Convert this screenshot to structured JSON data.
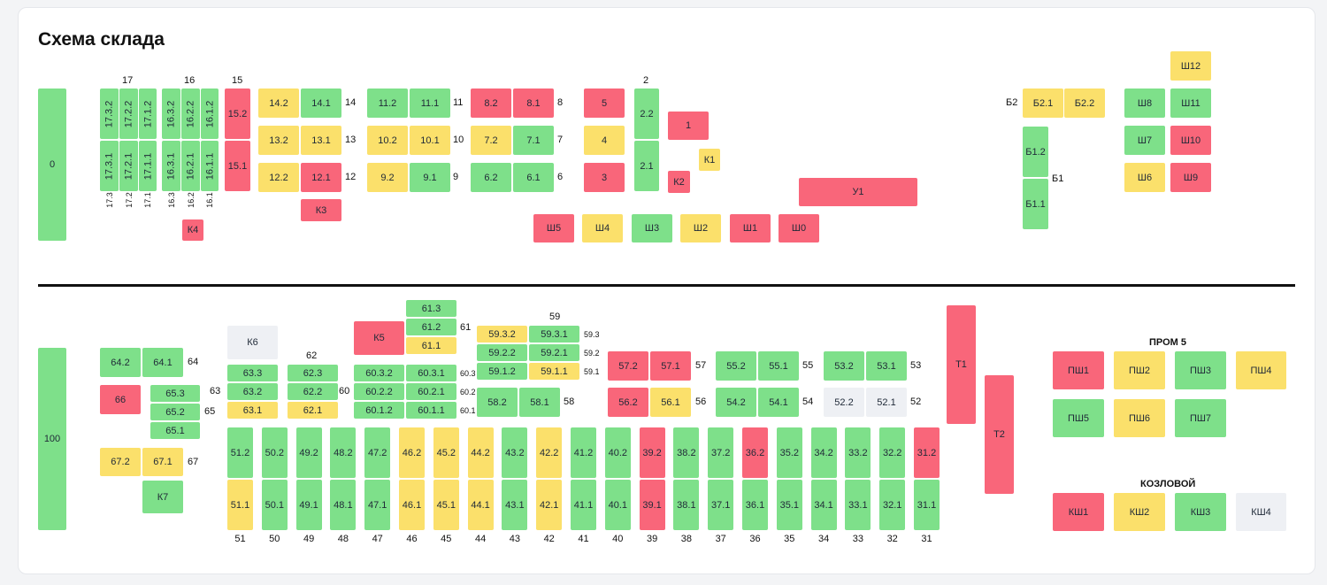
{
  "title": "Схема склада",
  "colors": {
    "green": "#7ee08a",
    "yellow": "#fbe06b",
    "red": "#f9667a",
    "gray": "#eef0f4"
  },
  "cells": {
    "c0": {
      "label": "0",
      "status": "green"
    },
    "c17_3_2": {
      "label": "17.3.2",
      "status": "green"
    },
    "c17_2_2": {
      "label": "17.2.2",
      "status": "green"
    },
    "c17_1_2": {
      "label": "17.1.2",
      "status": "green"
    },
    "c17_3_1": {
      "label": "17.3.1",
      "status": "green"
    },
    "c17_2_1": {
      "label": "17.2.1",
      "status": "green"
    },
    "c17_1_1": {
      "label": "17.1.1",
      "status": "green"
    },
    "c16_3_2": {
      "label": "16.3.2",
      "status": "green"
    },
    "c16_2_2": {
      "label": "16.2.2",
      "status": "green"
    },
    "c16_1_2": {
      "label": "16.1.2",
      "status": "green"
    },
    "c16_3_1": {
      "label": "16.3.1",
      "status": "green"
    },
    "c16_2_1": {
      "label": "16.2.1",
      "status": "green"
    },
    "c16_1_1": {
      "label": "16.1.1",
      "status": "green"
    },
    "cK4": {
      "label": "К4",
      "status": "red"
    },
    "c15_2": {
      "label": "15.2",
      "status": "red"
    },
    "c15_1": {
      "label": "15.1",
      "status": "red"
    },
    "c14_2": {
      "label": "14.2",
      "status": "yellow"
    },
    "c14_1": {
      "label": "14.1",
      "status": "green"
    },
    "c13_2": {
      "label": "13.2",
      "status": "yellow"
    },
    "c13_1": {
      "label": "13.1",
      "status": "yellow"
    },
    "c12_2": {
      "label": "12.2",
      "status": "yellow"
    },
    "c12_1": {
      "label": "12.1",
      "status": "red"
    },
    "cK3": {
      "label": "К3",
      "status": "red"
    },
    "c11_2": {
      "label": "11.2",
      "status": "green"
    },
    "c11_1": {
      "label": "11.1",
      "status": "green"
    },
    "c10_2": {
      "label": "10.2",
      "status": "yellow"
    },
    "c10_1": {
      "label": "10.1",
      "status": "yellow"
    },
    "c9_2": {
      "label": "9.2",
      "status": "yellow"
    },
    "c9_1": {
      "label": "9.1",
      "status": "green"
    },
    "c8_2": {
      "label": "8.2",
      "status": "red"
    },
    "c8_1": {
      "label": "8.1",
      "status": "red"
    },
    "c7_2": {
      "label": "7.2",
      "status": "yellow"
    },
    "c7_1": {
      "label": "7.1",
      "status": "green"
    },
    "c6_2": {
      "label": "6.2",
      "status": "green"
    },
    "c6_1": {
      "label": "6.1",
      "status": "green"
    },
    "c5": {
      "label": "5",
      "status": "red"
    },
    "c4": {
      "label": "4",
      "status": "yellow"
    },
    "c3": {
      "label": "3",
      "status": "red"
    },
    "c2_2": {
      "label": "2.2",
      "status": "green"
    },
    "c2_1": {
      "label": "2.1",
      "status": "green"
    },
    "c1": {
      "label": "1",
      "status": "red"
    },
    "cK1": {
      "label": "К1",
      "status": "yellow"
    },
    "cK2": {
      "label": "К2",
      "status": "red"
    },
    "cU1": {
      "label": "У1",
      "status": "red"
    },
    "cSh5": {
      "label": "Ш5",
      "status": "red"
    },
    "cSh4": {
      "label": "Ш4",
      "status": "yellow"
    },
    "cSh3": {
      "label": "Ш3",
      "status": "green"
    },
    "cSh2": {
      "label": "Ш2",
      "status": "yellow"
    },
    "cSh1": {
      "label": "Ш1",
      "status": "red"
    },
    "cSh0": {
      "label": "Ш0",
      "status": "red"
    },
    "cB2_1": {
      "label": "Б2.1",
      "status": "yellow"
    },
    "cB2_2": {
      "label": "Б2.2",
      "status": "yellow"
    },
    "cB1_2": {
      "label": "Б1.2",
      "status": "green"
    },
    "cB1_1": {
      "label": "Б1.1",
      "status": "green"
    },
    "cSh12": {
      "label": "Ш12",
      "status": "yellow"
    },
    "cSh8": {
      "label": "Ш8",
      "status": "green"
    },
    "cSh11": {
      "label": "Ш11",
      "status": "green"
    },
    "cSh7": {
      "label": "Ш7",
      "status": "green"
    },
    "cSh10": {
      "label": "Ш10",
      "status": "red"
    },
    "cSh6": {
      "label": "Ш6",
      "status": "yellow"
    },
    "cSh9": {
      "label": "Ш9",
      "status": "red"
    },
    "c100": {
      "label": "100",
      "status": "green"
    },
    "c64_2": {
      "label": "64.2",
      "status": "green"
    },
    "c64_1": {
      "label": "64.1",
      "status": "green"
    },
    "c66": {
      "label": "66",
      "status": "red"
    },
    "c65_3": {
      "label": "65.3",
      "status": "green"
    },
    "c65_2": {
      "label": "65.2",
      "status": "green"
    },
    "c65_1": {
      "label": "65.1",
      "status": "green"
    },
    "c67_2": {
      "label": "67.2",
      "status": "yellow"
    },
    "c67_1": {
      "label": "67.1",
      "status": "yellow"
    },
    "cK7": {
      "label": "К7",
      "status": "green"
    },
    "cK6": {
      "label": "К6",
      "status": "gray"
    },
    "c63_3": {
      "label": "63.3",
      "status": "green"
    },
    "c63_2": {
      "label": "63.2",
      "status": "green"
    },
    "c63_1": {
      "label": "63.1",
      "status": "yellow"
    },
    "c62_3": {
      "label": "62.3",
      "status": "green"
    },
    "c62_2": {
      "label": "62.2",
      "status": "green"
    },
    "c62_1": {
      "label": "62.1",
      "status": "yellow"
    },
    "cK5": {
      "label": "К5",
      "status": "red"
    },
    "c61_3": {
      "label": "61.3",
      "status": "green"
    },
    "c61_2": {
      "label": "61.2",
      "status": "green"
    },
    "c61_1": {
      "label": "61.1",
      "status": "yellow"
    },
    "c60_3_2": {
      "label": "60.3.2",
      "status": "green"
    },
    "c60_3_1": {
      "label": "60.3.1",
      "status": "green"
    },
    "c60_2_2": {
      "label": "60.2.2",
      "status": "green"
    },
    "c60_2_1": {
      "label": "60.2.1",
      "status": "green"
    },
    "c60_1_2": {
      "label": "60.1.2",
      "status": "green"
    },
    "c60_1_1": {
      "label": "60.1.1",
      "status": "green"
    },
    "c59_3_2": {
      "label": "59.3.2",
      "status": "yellow"
    },
    "c59_3_1": {
      "label": "59.3.1",
      "status": "green"
    },
    "c59_2_2": {
      "label": "59.2.2",
      "status": "green"
    },
    "c59_2_1": {
      "label": "59.2.1",
      "status": "green"
    },
    "c59_1_2": {
      "label": "59.1.2",
      "status": "green"
    },
    "c59_1_1": {
      "label": "59.1.1",
      "status": "yellow"
    },
    "c58_2": {
      "label": "58.2",
      "status": "green"
    },
    "c58_1": {
      "label": "58.1",
      "status": "green"
    },
    "c57_2": {
      "label": "57.2",
      "status": "red"
    },
    "c57_1": {
      "label": "57.1",
      "status": "red"
    },
    "c56_2": {
      "label": "56.2",
      "status": "red"
    },
    "c56_1": {
      "label": "56.1",
      "status": "yellow"
    },
    "c55_2": {
      "label": "55.2",
      "status": "green"
    },
    "c55_1": {
      "label": "55.1",
      "status": "green"
    },
    "c54_2": {
      "label": "54.2",
      "status": "green"
    },
    "c54_1": {
      "label": "54.1",
      "status": "green"
    },
    "c53_2": {
      "label": "53.2",
      "status": "green"
    },
    "c53_1": {
      "label": "53.1",
      "status": "green"
    },
    "c52_2": {
      "label": "52.2",
      "status": "gray"
    },
    "c52_1": {
      "label": "52.1",
      "status": "gray"
    },
    "cT1": {
      "label": "Т1",
      "status": "red"
    },
    "cT2": {
      "label": "Т2",
      "status": "red"
    },
    "cPSh1": {
      "label": "ПШ1",
      "status": "red"
    },
    "cPSh2": {
      "label": "ПШ2",
      "status": "yellow"
    },
    "cPSh3": {
      "label": "ПШ3",
      "status": "green"
    },
    "cPSh4": {
      "label": "ПШ4",
      "status": "yellow"
    },
    "cPSh5": {
      "label": "ПШ5",
      "status": "green"
    },
    "cPSh6": {
      "label": "ПШ6",
      "status": "yellow"
    },
    "cPSh7": {
      "label": "ПШ7",
      "status": "green"
    },
    "cKSh1": {
      "label": "КШ1",
      "status": "red"
    },
    "cKSh2": {
      "label": "КШ2",
      "status": "yellow"
    },
    "cKSh3": {
      "label": "КШ3",
      "status": "green"
    },
    "cKSh4": {
      "label": "КШ4",
      "status": "gray"
    }
  },
  "bottom_row": {
    "top": [
      {
        "label": "51.2",
        "status": "green"
      },
      {
        "label": "50.2",
        "status": "green"
      },
      {
        "label": "49.2",
        "status": "green"
      },
      {
        "label": "48.2",
        "status": "green"
      },
      {
        "label": "47.2",
        "status": "green"
      },
      {
        "label": "46.2",
        "status": "yellow"
      },
      {
        "label": "45.2",
        "status": "yellow"
      },
      {
        "label": "44.2",
        "status": "yellow"
      },
      {
        "label": "43.2",
        "status": "green"
      },
      {
        "label": "42.2",
        "status": "yellow"
      },
      {
        "label": "41.2",
        "status": "green"
      },
      {
        "label": "40.2",
        "status": "green"
      },
      {
        "label": "39.2",
        "status": "red"
      },
      {
        "label": "38.2",
        "status": "green"
      },
      {
        "label": "37.2",
        "status": "green"
      },
      {
        "label": "36.2",
        "status": "red"
      },
      {
        "label": "35.2",
        "status": "green"
      },
      {
        "label": "34.2",
        "status": "green"
      },
      {
        "label": "33.2",
        "status": "green"
      },
      {
        "label": "32.2",
        "status": "green"
      },
      {
        "label": "31.2",
        "status": "red"
      }
    ],
    "bottom": [
      {
        "label": "51.1",
        "status": "yellow"
      },
      {
        "label": "50.1",
        "status": "green"
      },
      {
        "label": "49.1",
        "status": "green"
      },
      {
        "label": "48.1",
        "status": "green"
      },
      {
        "label": "47.1",
        "status": "green"
      },
      {
        "label": "46.1",
        "status": "yellow"
      },
      {
        "label": "45.1",
        "status": "yellow"
      },
      {
        "label": "44.1",
        "status": "yellow"
      },
      {
        "label": "43.1",
        "status": "green"
      },
      {
        "label": "42.1",
        "status": "yellow"
      },
      {
        "label": "41.1",
        "status": "green"
      },
      {
        "label": "40.1",
        "status": "green"
      },
      {
        "label": "39.1",
        "status": "red"
      },
      {
        "label": "38.1",
        "status": "green"
      },
      {
        "label": "37.1",
        "status": "green"
      },
      {
        "label": "36.1",
        "status": "green"
      },
      {
        "label": "35.1",
        "status": "green"
      },
      {
        "label": "34.1",
        "status": "green"
      },
      {
        "label": "33.1",
        "status": "green"
      },
      {
        "label": "32.1",
        "status": "green"
      },
      {
        "label": "31.1",
        "status": "green"
      }
    ],
    "numbers": [
      "51",
      "50",
      "49",
      "48",
      "47",
      "46",
      "45",
      "44",
      "43",
      "42",
      "41",
      "40",
      "39",
      "38",
      "37",
      "36",
      "35",
      "34",
      "33",
      "32",
      "31"
    ]
  },
  "labels": {
    "l17": "17",
    "l16": "16",
    "l15": "15",
    "l2": "2",
    "l17_3": "17.3",
    "l17_2": "17.2",
    "l17_1": "17.1",
    "l16_3": "16.3",
    "l16_2": "16.2",
    "l16_1": "16.1",
    "l14": "14",
    "l13": "13",
    "l12": "12",
    "l11": "11",
    "l10": "10",
    "l9": "9",
    "l8": "8",
    "l7": "7",
    "l6": "6",
    "lB2": "Б2",
    "lB1": "Б1",
    "l64": "64",
    "l63": "63",
    "l65": "65",
    "l67": "67",
    "l62": "62",
    "l60": "60",
    "l61": "61",
    "l60_3": "60.3",
    "l60_2": "60.2",
    "l60_1": "60.1",
    "l59": "59",
    "l59_3": "59.3",
    "l59_2": "59.2",
    "l59_1": "59.1",
    "l58": "58",
    "l57": "57",
    "l56": "56",
    "l55": "55",
    "l54": "54",
    "l53": "53",
    "l52": "52",
    "prom5": "ПРОМ 5",
    "kozlovoy": "КОЗЛОВОЙ"
  }
}
